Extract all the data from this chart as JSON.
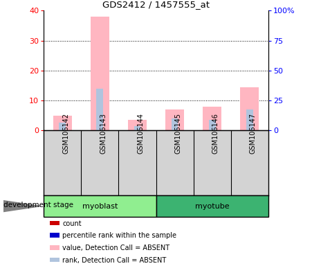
{
  "title": "GDS2412 / 1457555_at",
  "samples": [
    "GSM106142",
    "GSM106143",
    "GSM106144",
    "GSM106145",
    "GSM106146",
    "GSM106147"
  ],
  "value_absent": [
    5.0,
    38.0,
    3.5,
    7.0,
    8.0,
    14.5
  ],
  "rank_absent": [
    2.5,
    14.0,
    1.5,
    4.0,
    3.5,
    7.0
  ],
  "ylim_left": [
    0,
    40
  ],
  "ylim_right": [
    0,
    100
  ],
  "yticks_left": [
    0,
    10,
    20,
    30,
    40
  ],
  "yticks_right": [
    0,
    25,
    50,
    75,
    100
  ],
  "yticklabels_right": [
    "0",
    "25",
    "50",
    "75",
    "100%"
  ],
  "color_value_absent": "#FFB6C1",
  "color_rank_absent": "#B0C4DE",
  "color_value_present": "#CC0000",
  "color_rank_present": "#0000CC",
  "bg_label": "#D3D3D3",
  "bg_group_myoblast": "#90EE90",
  "bg_group_myotube": "#3CB371",
  "dev_stage_label": "development stage",
  "groups_info": [
    {
      "label": "myoblast",
      "start": 0,
      "end": 2,
      "color": "#90EE90"
    },
    {
      "label": "myotube",
      "start": 3,
      "end": 5,
      "color": "#3CB371"
    }
  ],
  "legend_items": [
    {
      "label": "count",
      "color": "#CC0000"
    },
    {
      "label": "percentile rank within the sample",
      "color": "#0000CC"
    },
    {
      "label": "value, Detection Call = ABSENT",
      "color": "#FFB6C1"
    },
    {
      "label": "rank, Detection Call = ABSENT",
      "color": "#B0C4DE"
    }
  ]
}
